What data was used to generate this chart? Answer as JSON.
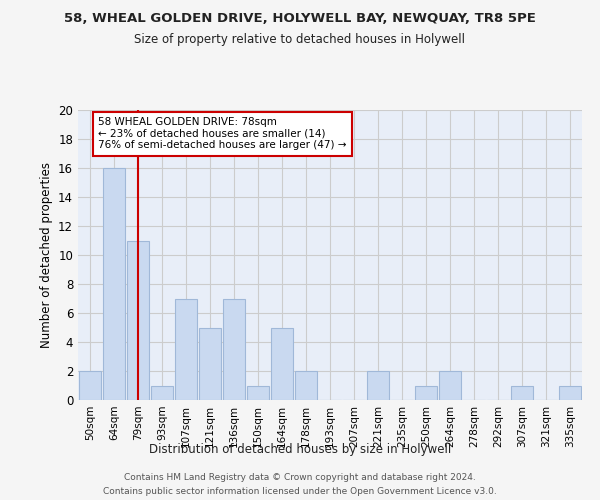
{
  "title1": "58, WHEAL GOLDEN DRIVE, HOLYWELL BAY, NEWQUAY, TR8 5PE",
  "title2": "Size of property relative to detached houses in Holywell",
  "xlabel": "Distribution of detached houses by size in Holywell",
  "ylabel": "Number of detached properties",
  "categories": [
    "50sqm",
    "64sqm",
    "79sqm",
    "93sqm",
    "107sqm",
    "121sqm",
    "136sqm",
    "150sqm",
    "164sqm",
    "178sqm",
    "193sqm",
    "207sqm",
    "221sqm",
    "235sqm",
    "250sqm",
    "264sqm",
    "278sqm",
    "292sqm",
    "307sqm",
    "321sqm",
    "335sqm"
  ],
  "values": [
    2,
    16,
    11,
    1,
    7,
    5,
    7,
    1,
    5,
    2,
    0,
    0,
    2,
    0,
    1,
    2,
    0,
    0,
    1,
    0,
    1
  ],
  "bar_color": "#c9d9f0",
  "bar_edge_color": "#a0b8d8",
  "redline_index": 2,
  "annotation_line1": "58 WHEAL GOLDEN DRIVE: 78sqm",
  "annotation_line2": "← 23% of detached houses are smaller (14)",
  "annotation_line3": "76% of semi-detached houses are larger (47) →",
  "annotation_box_color": "#ffffff",
  "annotation_box_edge": "#cc0000",
  "redline_color": "#cc0000",
  "ylim": [
    0,
    20
  ],
  "yticks": [
    0,
    2,
    4,
    6,
    8,
    10,
    12,
    14,
    16,
    18,
    20
  ],
  "grid_color": "#cccccc",
  "bg_color": "#e8eef8",
  "fig_bg_color": "#f5f5f5",
  "footnote1": "Contains HM Land Registry data © Crown copyright and database right 2024.",
  "footnote2": "Contains public sector information licensed under the Open Government Licence v3.0."
}
